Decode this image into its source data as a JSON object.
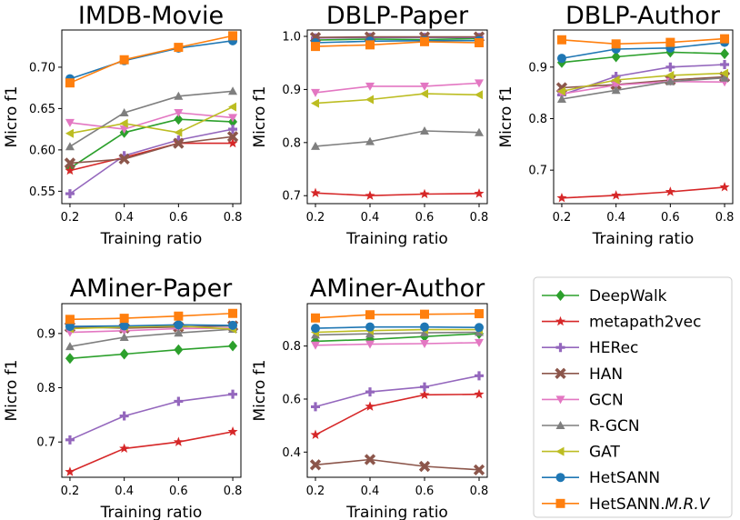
{
  "chart_data": [
    {
      "type": "line",
      "title": "IMDB-Movie",
      "xlabel": "Training ratio",
      "ylabel": "Micro f1",
      "x": [
        0.2,
        0.4,
        0.6,
        0.8
      ],
      "xticks": [
        "0.2",
        "0.4",
        "0.6",
        "0.8"
      ],
      "ylim": [
        0.535,
        0.745
      ],
      "yticks": [
        0.55,
        0.6,
        0.65,
        0.7
      ],
      "ytick_labels": [
        "0.55",
        "0.60",
        "0.65",
        "0.70"
      ],
      "series": [
        {
          "name": "DeepWalk",
          "values": [
            0.578,
            0.621,
            0.637,
            0.634
          ]
        },
        {
          "name": "metapath2vec",
          "values": [
            0.575,
            0.591,
            0.608,
            0.608
          ]
        },
        {
          "name": "HERec",
          "values": [
            0.547,
            0.593,
            0.612,
            0.625
          ]
        },
        {
          "name": "HAN",
          "values": [
            0.584,
            0.589,
            0.608,
            0.616
          ]
        },
        {
          "name": "GCN",
          "values": [
            0.633,
            0.625,
            0.645,
            0.639
          ]
        },
        {
          "name": "R-GCN",
          "values": [
            0.604,
            0.645,
            0.665,
            0.671
          ]
        },
        {
          "name": "GAT",
          "values": [
            0.62,
            0.632,
            0.621,
            0.652
          ]
        },
        {
          "name": "HetSANN",
          "values": [
            0.686,
            0.708,
            0.723,
            0.732
          ]
        },
        {
          "name": "HetSANN.M.R.V",
          "values": [
            0.681,
            0.709,
            0.724,
            0.738
          ]
        }
      ]
    },
    {
      "type": "line",
      "title": "DBLP-Paper",
      "xlabel": "Training ratio",
      "ylabel": "Micro f1",
      "x": [
        0.2,
        0.4,
        0.6,
        0.8
      ],
      "xticks": [
        "0.2",
        "0.4",
        "0.6",
        "0.8"
      ],
      "ylim": [
        0.685,
        1.012
      ],
      "yticks": [
        0.7,
        0.8,
        0.9,
        1.0
      ],
      "ytick_labels": [
        "0.7",
        "0.8",
        "0.9",
        "1.0"
      ],
      "series": [
        {
          "name": "DeepWalk",
          "values": [
            0.993,
            0.995,
            0.994,
            0.996
          ]
        },
        {
          "name": "metapath2vec",
          "values": [
            0.705,
            0.7,
            0.703,
            0.704
          ]
        },
        {
          "name": "HERec",
          "values": [
            0.997,
            0.998,
            0.998,
            0.998
          ]
        },
        {
          "name": "HAN",
          "values": [
            0.998,
            0.999,
            0.999,
            0.999
          ]
        },
        {
          "name": "GCN",
          "values": [
            0.894,
            0.906,
            0.906,
            0.912
          ]
        },
        {
          "name": "R-GCN",
          "values": [
            0.793,
            0.802,
            0.822,
            0.819
          ]
        },
        {
          "name": "GAT",
          "values": [
            0.874,
            0.881,
            0.892,
            0.89
          ]
        },
        {
          "name": "HetSANN",
          "values": [
            0.988,
            0.991,
            0.992,
            0.992
          ]
        },
        {
          "name": "HetSANN.M.R.V",
          "values": [
            0.981,
            0.984,
            0.99,
            0.988
          ]
        }
      ]
    },
    {
      "type": "line",
      "title": "DBLP-Author",
      "xlabel": "Training ratio",
      "ylabel": "Micro f1",
      "x": [
        0.2,
        0.4,
        0.6,
        0.8
      ],
      "xticks": [
        "0.2",
        "0.4",
        "0.6",
        "0.8"
      ],
      "ylim": [
        0.635,
        0.972
      ],
      "yticks": [
        0.7,
        0.8,
        0.9
      ],
      "ytick_labels": [
        "0.7",
        "0.8",
        "0.9"
      ],
      "series": [
        {
          "name": "DeepWalk",
          "values": [
            0.909,
            0.92,
            0.929,
            0.926
          ]
        },
        {
          "name": "metapath2vec",
          "values": [
            0.646,
            0.651,
            0.658,
            0.667
          ]
        },
        {
          "name": "HERec",
          "values": [
            0.846,
            0.882,
            0.9,
            0.905
          ]
        },
        {
          "name": "HAN",
          "values": [
            0.86,
            0.866,
            0.875,
            0.881
          ]
        },
        {
          "name": "GCN",
          "values": [
            0.848,
            0.865,
            0.872,
            0.871
          ]
        },
        {
          "name": "R-GCN",
          "values": [
            0.838,
            0.855,
            0.872,
            0.879
          ]
        },
        {
          "name": "GAT",
          "values": [
            0.853,
            0.875,
            0.884,
            0.888
          ]
        },
        {
          "name": "HetSANN",
          "values": [
            0.917,
            0.935,
            0.937,
            0.948
          ]
        },
        {
          "name": "HetSANN.M.R.V",
          "values": [
            0.953,
            0.945,
            0.948,
            0.955
          ]
        }
      ]
    },
    {
      "type": "line",
      "title": "AMiner-Paper",
      "xlabel": "Training ratio",
      "ylabel": "Micro f1",
      "x": [
        0.2,
        0.4,
        0.6,
        0.8
      ],
      "xticks": [
        "0.2",
        "0.4",
        "0.6",
        "0.8"
      ],
      "ylim": [
        0.635,
        0.955
      ],
      "yticks": [
        0.7,
        0.8,
        0.9
      ],
      "ytick_labels": [
        "0.7",
        "0.8",
        "0.9"
      ],
      "series": [
        {
          "name": "DeepWalk",
          "values": [
            0.854,
            0.862,
            0.87,
            0.877
          ]
        },
        {
          "name": "metapath2vec",
          "values": [
            0.645,
            0.688,
            0.7,
            0.719
          ]
        },
        {
          "name": "HERec",
          "values": [
            0.704,
            0.748,
            0.775,
            0.788
          ]
        },
        {
          "name": "HAN",
          "values": [
            0.912,
            0.91,
            0.912,
            0.914
          ]
        },
        {
          "name": "GCN",
          "values": [
            0.902,
            0.905,
            0.909,
            0.91
          ]
        },
        {
          "name": "R-GCN",
          "values": [
            0.876,
            0.893,
            0.901,
            0.908
          ]
        },
        {
          "name": "GAT",
          "values": [
            0.909,
            0.912,
            0.914,
            0.908
          ]
        },
        {
          "name": "HetSANN",
          "values": [
            0.913,
            0.914,
            0.916,
            0.915
          ]
        },
        {
          "name": "HetSANN.M.R.V",
          "values": [
            0.926,
            0.928,
            0.932,
            0.937
          ]
        }
      ]
    },
    {
      "type": "line",
      "title": "AMiner-Author",
      "xlabel": "Training ratio",
      "ylabel": "Micro f1",
      "x": [
        0.2,
        0.4,
        0.6,
        0.8
      ],
      "xticks": [
        "0.2",
        "0.4",
        "0.6",
        "0.8"
      ],
      "ylim": [
        0.305,
        0.96
      ],
      "yticks": [
        0.4,
        0.6,
        0.8
      ],
      "ytick_labels": [
        "0.4",
        "0.6",
        "0.8"
      ],
      "series": [
        {
          "name": "DeepWalk",
          "values": [
            0.818,
            0.825,
            0.836,
            0.847
          ]
        },
        {
          "name": "metapath2vec",
          "values": [
            0.465,
            0.572,
            0.616,
            0.618
          ]
        },
        {
          "name": "HERec",
          "values": [
            0.571,
            0.627,
            0.646,
            0.688
          ]
        },
        {
          "name": "HAN",
          "values": [
            0.352,
            0.372,
            0.346,
            0.333
          ]
        },
        {
          "name": "GCN",
          "values": [
            0.803,
            0.807,
            0.809,
            0.813
          ]
        },
        {
          "name": "R-GCN",
          "values": [
            0.842,
            0.846,
            0.85,
            0.852
          ]
        },
        {
          "name": "GAT",
          "values": [
            0.852,
            0.858,
            0.862,
            0.862
          ]
        },
        {
          "name": "HetSANN",
          "values": [
            0.867,
            0.872,
            0.872,
            0.87
          ]
        },
        {
          "name": "HetSANN.M.R.V",
          "values": [
            0.906,
            0.918,
            0.92,
            0.922
          ]
        }
      ]
    }
  ],
  "legend": {
    "location": "bottom-right",
    "entries": [
      {
        "name": "DeepWalk",
        "label": "DeepWalk",
        "color": "#2ca02c",
        "marker": "diamond"
      },
      {
        "name": "metapath2vec",
        "label": "metapath2vec",
        "color": "#d62728",
        "marker": "star"
      },
      {
        "name": "HERec",
        "label": "HERec",
        "color": "#9467bd",
        "marker": "plus"
      },
      {
        "name": "HAN",
        "label": "HAN",
        "color": "#8c564b",
        "marker": "x"
      },
      {
        "name": "GCN",
        "label": "GCN",
        "color": "#e377c2",
        "marker": "triangle-down"
      },
      {
        "name": "R-GCN",
        "label": "R-GCN",
        "color": "#7f7f7f",
        "marker": "triangle-up"
      },
      {
        "name": "GAT",
        "label": "GAT",
        "color": "#bcbd22",
        "marker": "triangle-left"
      },
      {
        "name": "HetSANN",
        "label": "HetSANN",
        "color": "#1f77b4",
        "marker": "circle"
      },
      {
        "name": "HetSANN.M.R.V",
        "label": "HetSANN.",
        "label_italic": "M.R.V",
        "color": "#ff7f0e",
        "marker": "square"
      }
    ]
  }
}
